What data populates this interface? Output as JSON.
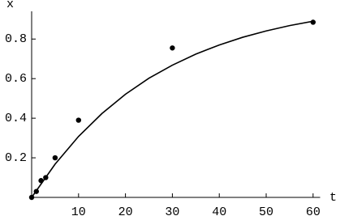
{
  "chart_data": {
    "type": "scatter",
    "xlabel": "t",
    "ylabel": "x",
    "points": {
      "x": [
        0,
        1,
        2,
        3,
        5,
        10,
        30,
        60
      ],
      "values": [
        0,
        0.03,
        0.085,
        0.1,
        0.2,
        0.39,
        0.755,
        0.885
      ]
    },
    "curve": {
      "x": [
        0,
        5,
        10,
        15,
        20,
        25,
        30,
        35,
        40,
        45,
        50,
        55,
        60
      ],
      "values": [
        0,
        0.168,
        0.308,
        0.424,
        0.521,
        0.602,
        0.668,
        0.724,
        0.77,
        0.809,
        0.841,
        0.868,
        0.89
      ]
    },
    "color": "#000000",
    "xlim": [
      0,
      61.5
    ],
    "ylim": [
      0,
      0.94
    ],
    "xticks": [
      10,
      20,
      30,
      40,
      50,
      60
    ],
    "yticks": [
      0.2,
      0.4,
      0.6,
      0.8
    ]
  }
}
